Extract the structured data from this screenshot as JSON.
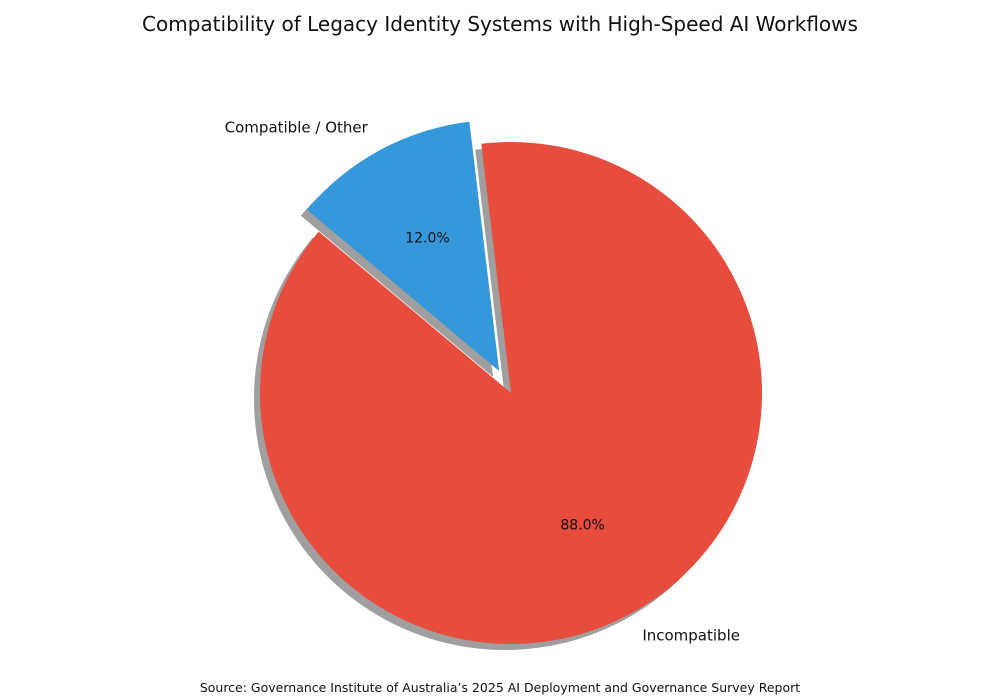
{
  "chart_data": {
    "type": "pie",
    "title": "Compatibility of Legacy Identity Systems with High-Speed AI Workflows",
    "categories": [
      "Incompatible",
      "Compatible / Other"
    ],
    "values": [
      88.0,
      12.0
    ],
    "value_labels": [
      "88.0%",
      "12.0%"
    ],
    "colors": [
      "#e74c3c",
      "#3498db"
    ],
    "exploded": [
      false,
      true
    ],
    "shadow": true,
    "legend": "none",
    "source": "Source: Governance Institute of Australia’s 2025 AI Deployment and Governance Survey Report"
  }
}
